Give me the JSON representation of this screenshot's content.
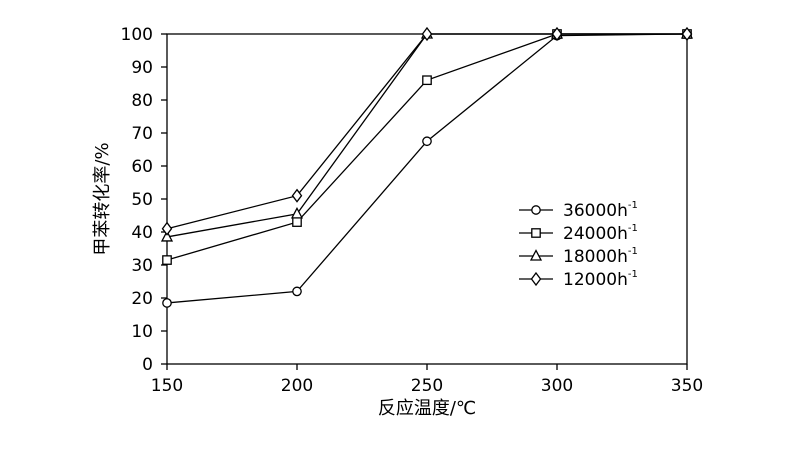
{
  "chart_data": {
    "type": "line",
    "title": "",
    "xlabel": "反应温度/℃",
    "ylabel": "甲苯转化率/%",
    "x": [
      150,
      200,
      250,
      300,
      350
    ],
    "xlim": [
      150,
      350
    ],
    "ylim": [
      0,
      100
    ],
    "xticks": [
      150,
      200,
      250,
      300,
      350
    ],
    "yticks": [
      0,
      10,
      20,
      30,
      40,
      50,
      60,
      70,
      80,
      90,
      100
    ],
    "grid": false,
    "legend_position": "center-right",
    "series": [
      {
        "name": "36000h",
        "name_sup": "-1",
        "marker": "circle",
        "values": [
          18.5,
          22,
          67.5,
          99.5,
          100
        ]
      },
      {
        "name": "24000h",
        "name_sup": "-1",
        "marker": "square",
        "values": [
          31.5,
          43,
          86,
          100,
          100
        ]
      },
      {
        "name": "18000h",
        "name_sup": "-1",
        "marker": "triangle",
        "values": [
          38.5,
          45.5,
          100,
          100,
          100
        ]
      },
      {
        "name": "12000h",
        "name_sup": "-1",
        "marker": "diamond",
        "values": [
          41,
          51,
          100,
          100,
          100
        ]
      }
    ]
  }
}
